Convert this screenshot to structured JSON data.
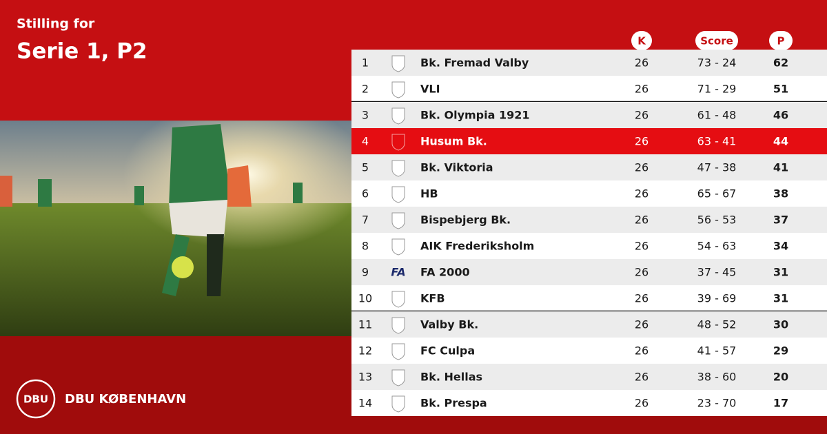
{
  "header": {
    "subtitle": "Stilling for",
    "title": "Serie 1, P2"
  },
  "table": {
    "columns": [
      "K",
      "Score",
      "P"
    ],
    "rows": [
      {
        "rank": 1,
        "team": "Bk. Fremad Valby",
        "k": 26,
        "score": "73 - 24",
        "p": 62
      },
      {
        "rank": 2,
        "team": "VLI",
        "k": 26,
        "score": "71 - 29",
        "p": 51,
        "divider_below": true
      },
      {
        "rank": 3,
        "team": "Bk. Olympia 1921",
        "k": 26,
        "score": "61 - 48",
        "p": 46
      },
      {
        "rank": 4,
        "team": "Husum Bk.",
        "k": 26,
        "score": "63 - 41",
        "p": 44,
        "highlight": true
      },
      {
        "rank": 5,
        "team": "Bk. Viktoria",
        "k": 26,
        "score": "47 - 38",
        "p": 41
      },
      {
        "rank": 6,
        "team": "HB",
        "k": 26,
        "score": "65 - 67",
        "p": 38
      },
      {
        "rank": 7,
        "team": "Bispebjerg Bk.",
        "k": 26,
        "score": "56 - 53",
        "p": 37
      },
      {
        "rank": 8,
        "team": "AIK Frederiksholm",
        "k": 26,
        "score": "54 - 63",
        "p": 34
      },
      {
        "rank": 9,
        "team": "FA 2000",
        "k": 26,
        "score": "37 - 45",
        "p": 31,
        "logo_text": "FA"
      },
      {
        "rank": 10,
        "team": "KFB",
        "k": 26,
        "score": "39 - 69",
        "p": 31,
        "divider_below": true
      },
      {
        "rank": 11,
        "team": "Valby Bk.",
        "k": 26,
        "score": "48 - 52",
        "p": 30
      },
      {
        "rank": 12,
        "team": "FC Culpa",
        "k": 26,
        "score": "41 - 57",
        "p": 29
      },
      {
        "rank": 13,
        "team": "Bk. Hellas",
        "k": 26,
        "score": "38 - 60",
        "p": 20
      },
      {
        "rank": 14,
        "team": "Bk. Prespa",
        "k": 26,
        "score": "23 - 70",
        "p": 17
      }
    ]
  },
  "brand": {
    "logo": "DBU",
    "name": "DBU KØBENHAVN"
  }
}
